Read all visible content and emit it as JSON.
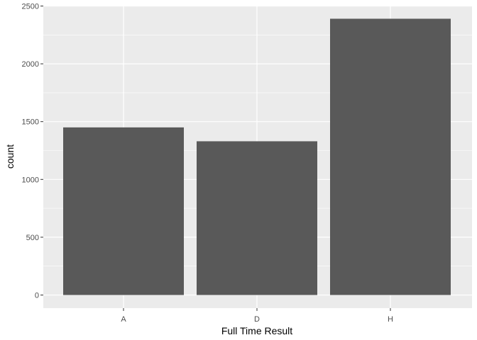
{
  "chart_data": {
    "type": "bar",
    "categories": [
      "A",
      "D",
      "H"
    ],
    "values": [
      1450,
      1330,
      2390
    ],
    "title": "",
    "xlabel": "Full Time Result",
    "ylabel": "count",
    "ylim": [
      0,
      2500
    ],
    "yticks": [
      "0",
      "500",
      "1000",
      "1500",
      "2000",
      "2500"
    ],
    "grid": true,
    "legend": "none",
    "colors": {
      "panel": "#ebebeb",
      "grid_major": "#ffffff",
      "bar": "#595959",
      "tick_text": "#4d4d4d",
      "tick_mark": "#333333"
    }
  }
}
